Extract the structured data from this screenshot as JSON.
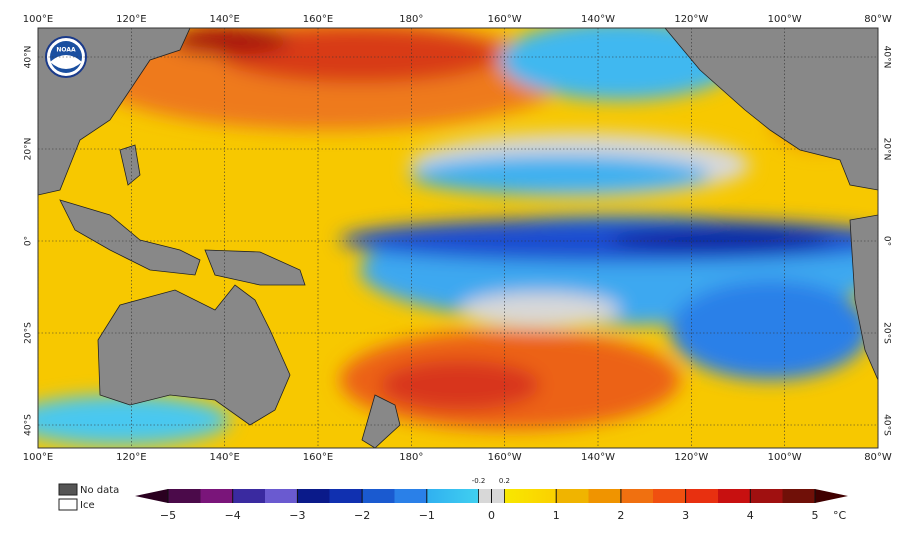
{
  "logo_text": "NOAA",
  "map": {
    "lon_labels": [
      "100°E",
      "120°E",
      "140°E",
      "160°E",
      "180°",
      "160°W",
      "140°W",
      "120°W",
      "100°W",
      "80°W"
    ],
    "lat_labels": [
      "40°N",
      "20°N",
      "0°",
      "20°S",
      "40°S"
    ]
  },
  "legend": {
    "no_data": "No data",
    "ice": "Ice"
  },
  "colorbar": {
    "range": [
      -5,
      5
    ],
    "ticks": [
      {
        "value": -5,
        "label": "−5"
      },
      {
        "value": -4,
        "label": "−4"
      },
      {
        "value": -3,
        "label": "−3"
      },
      {
        "value": -2,
        "label": "−2"
      },
      {
        "value": -1,
        "label": "−1"
      },
      0,
      1,
      2,
      3,
      4,
      5
    ],
    "fine_ticks": [
      -0.2,
      0.2
    ],
    "unit": "°C"
  }
}
